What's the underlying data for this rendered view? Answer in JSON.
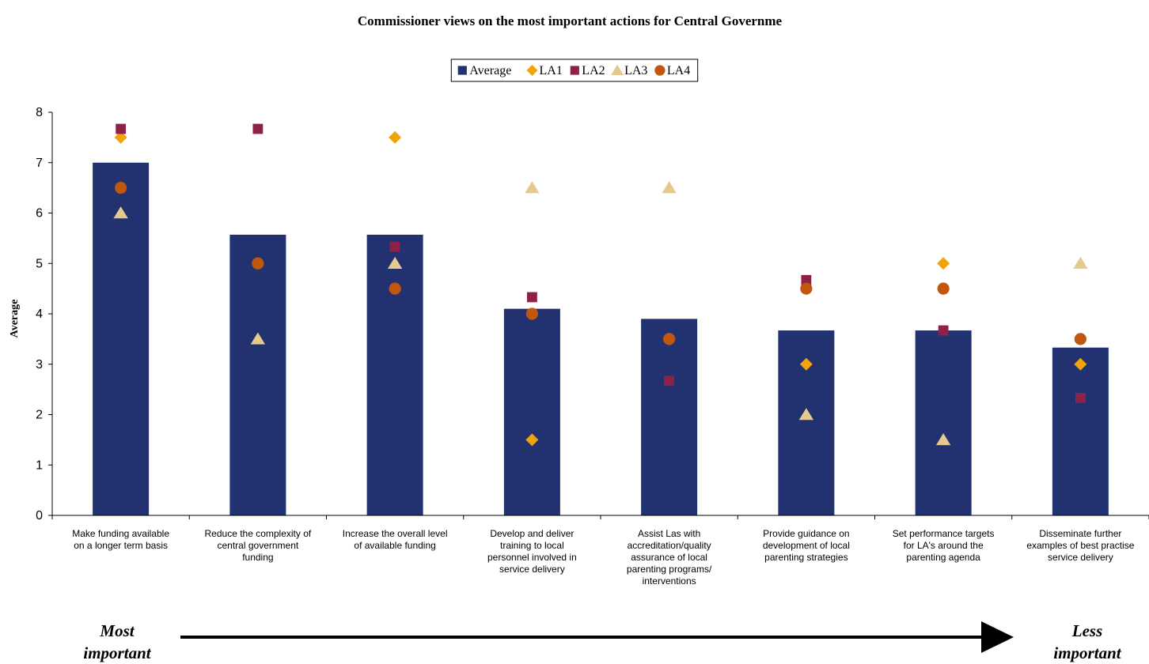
{
  "chart_data": {
    "type": "bar",
    "title": "Commissioner views on the most important actions for Central Governme",
    "ylabel": "Average",
    "ylim": [
      0,
      8
    ],
    "yticks": [
      0,
      1,
      2,
      3,
      4,
      5,
      6,
      7,
      8
    ],
    "grid": false,
    "legend_position": "top-center",
    "categories": [
      [
        "Make funding available",
        "on a longer term basis"
      ],
      [
        "Reduce the complexity of",
        "central government",
        "funding"
      ],
      [
        "Increase the overall level",
        "of available funding"
      ],
      [
        "Develop and deliver",
        "training to local",
        "personnel involved in",
        "service delivery"
      ],
      [
        "Assist Las with",
        "accreditation/quality",
        "assurance of local",
        "parenting programs/",
        "interventions"
      ],
      [
        "Provide guidance on",
        "development of local",
        "parenting strategies"
      ],
      [
        "Set performance targets",
        "for LA's around the",
        "parenting agenda"
      ],
      [
        "Disseminate further",
        "examples of best practise",
        "service delivery"
      ]
    ],
    "series": [
      {
        "name": "Average",
        "kind": "bar",
        "marker": "square",
        "color": "#223270",
        "values": [
          7.0,
          5.57,
          5.57,
          4.1,
          3.9,
          3.67,
          3.67,
          3.33
        ]
      },
      {
        "name": "LA1",
        "kind": "scatter",
        "marker": "diamond",
        "color": "#F0A30A",
        "values": [
          7.5,
          null,
          7.5,
          1.5,
          3.5,
          3.0,
          5.0,
          3.0
        ]
      },
      {
        "name": "LA2",
        "kind": "scatter",
        "marker": "square",
        "color": "#8E2148",
        "values": [
          7.67,
          7.67,
          5.33,
          4.33,
          2.67,
          4.67,
          3.67,
          2.33
        ]
      },
      {
        "name": "LA3",
        "kind": "scatter",
        "marker": "triangle",
        "color": "#E5C98F",
        "values": [
          6.0,
          3.5,
          5.0,
          6.5,
          6.5,
          2.0,
          1.5,
          5.0
        ]
      },
      {
        "name": "LA4",
        "kind": "scatter",
        "marker": "circle",
        "color": "#C1570E",
        "values": [
          6.5,
          5.0,
          4.5,
          4.0,
          3.5,
          4.5,
          4.5,
          3.5
        ]
      }
    ],
    "annotations": {
      "left": [
        "Most",
        "important"
      ],
      "right": [
        "Less",
        "important"
      ],
      "arrow_direction": "right"
    }
  }
}
